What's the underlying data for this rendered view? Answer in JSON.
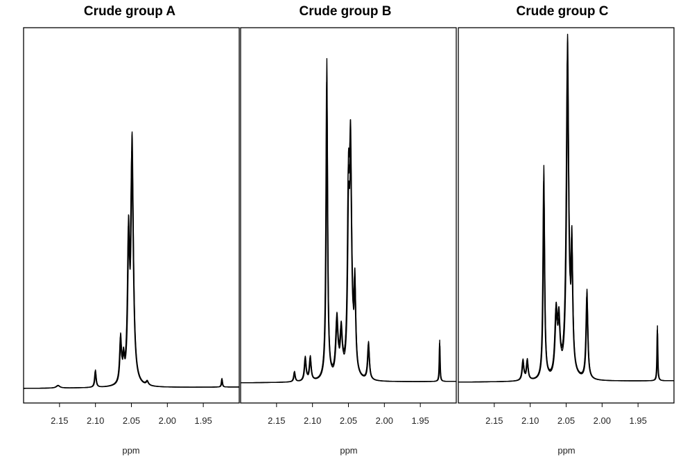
{
  "chart_data": [
    {
      "type": "line",
      "title": "Crude group A",
      "xlabel": "ppm",
      "ylabel": "",
      "xlim": [
        2.2,
        1.9
      ],
      "x_reversed": true,
      "xticks": [
        "2.15",
        "2.10",
        "2.05",
        "2.00",
        "1.95"
      ],
      "baseline": 0.0,
      "ylim": [
        0,
        1.0
      ],
      "overlay_count": 3,
      "peaks": [
        {
          "ppm": 2.152,
          "height": 0.008,
          "width": 0.003
        },
        {
          "ppm": 2.1,
          "height": 0.05,
          "width": 0.0012
        },
        {
          "ppm": 2.065,
          "height": 0.13,
          "width": 0.0015
        },
        {
          "ppm": 2.061,
          "height": 0.06,
          "width": 0.0015
        },
        {
          "ppm": 2.054,
          "height": 0.38,
          "width": 0.0016
        },
        {
          "ppm": 2.049,
          "height": 0.7,
          "width": 0.0022
        },
        {
          "ppm": 2.028,
          "height": 0.012,
          "width": 0.002
        },
        {
          "ppm": 1.924,
          "height": 0.025,
          "width": 0.0008
        }
      ]
    },
    {
      "type": "line",
      "title": "Crude group B",
      "xlabel": "ppm",
      "ylabel": "",
      "xlim": [
        2.2,
        1.9
      ],
      "x_reversed": true,
      "xticks": [
        "2.15",
        "2.10",
        "2.05",
        "2.00",
        "1.95"
      ],
      "baseline": 0.01,
      "ylim": [
        0,
        1.0
      ],
      "overlay_count": 3,
      "peaks": [
        {
          "ppm": 2.125,
          "height": 0.03,
          "width": 0.0012
        },
        {
          "ppm": 2.11,
          "height": 0.07,
          "width": 0.0015
        },
        {
          "ppm": 2.103,
          "height": 0.07,
          "width": 0.0015
        },
        {
          "ppm": 2.08,
          "height": 0.93,
          "width": 0.0013
        },
        {
          "ppm": 2.066,
          "height": 0.17,
          "width": 0.002
        },
        {
          "ppm": 2.06,
          "height": 0.13,
          "width": 0.002
        },
        {
          "ppm": 2.05,
          "height": 0.45,
          "width": 0.0015
        },
        {
          "ppm": 2.047,
          "height": 0.65,
          "width": 0.002
        },
        {
          "ppm": 2.041,
          "height": 0.25,
          "width": 0.0015
        },
        {
          "ppm": 2.022,
          "height": 0.11,
          "width": 0.0015
        },
        {
          "ppm": 1.923,
          "height": 0.12,
          "width": 0.0006
        }
      ]
    },
    {
      "type": "line",
      "title": "Crude group C",
      "xlabel": "ppm",
      "ylabel": "",
      "xlim": [
        2.2,
        1.9
      ],
      "x_reversed": true,
      "xticks": [
        "2.15",
        "2.10",
        "2.05",
        "2.00",
        "1.95"
      ],
      "baseline": 0.01,
      "ylim": [
        0,
        1.0
      ],
      "overlay_count": 3,
      "peaks": [
        {
          "ppm": 2.11,
          "height": 0.06,
          "width": 0.0015
        },
        {
          "ppm": 2.104,
          "height": 0.06,
          "width": 0.0015
        },
        {
          "ppm": 2.081,
          "height": 0.62,
          "width": 0.0013
        },
        {
          "ppm": 2.064,
          "height": 0.18,
          "width": 0.002
        },
        {
          "ppm": 2.06,
          "height": 0.15,
          "width": 0.002
        },
        {
          "ppm": 2.048,
          "height": 0.98,
          "width": 0.002
        },
        {
          "ppm": 2.042,
          "height": 0.35,
          "width": 0.0015
        },
        {
          "ppm": 2.021,
          "height": 0.26,
          "width": 0.0015
        },
        {
          "ppm": 1.923,
          "height": 0.16,
          "width": 0.0006
        }
      ]
    }
  ]
}
